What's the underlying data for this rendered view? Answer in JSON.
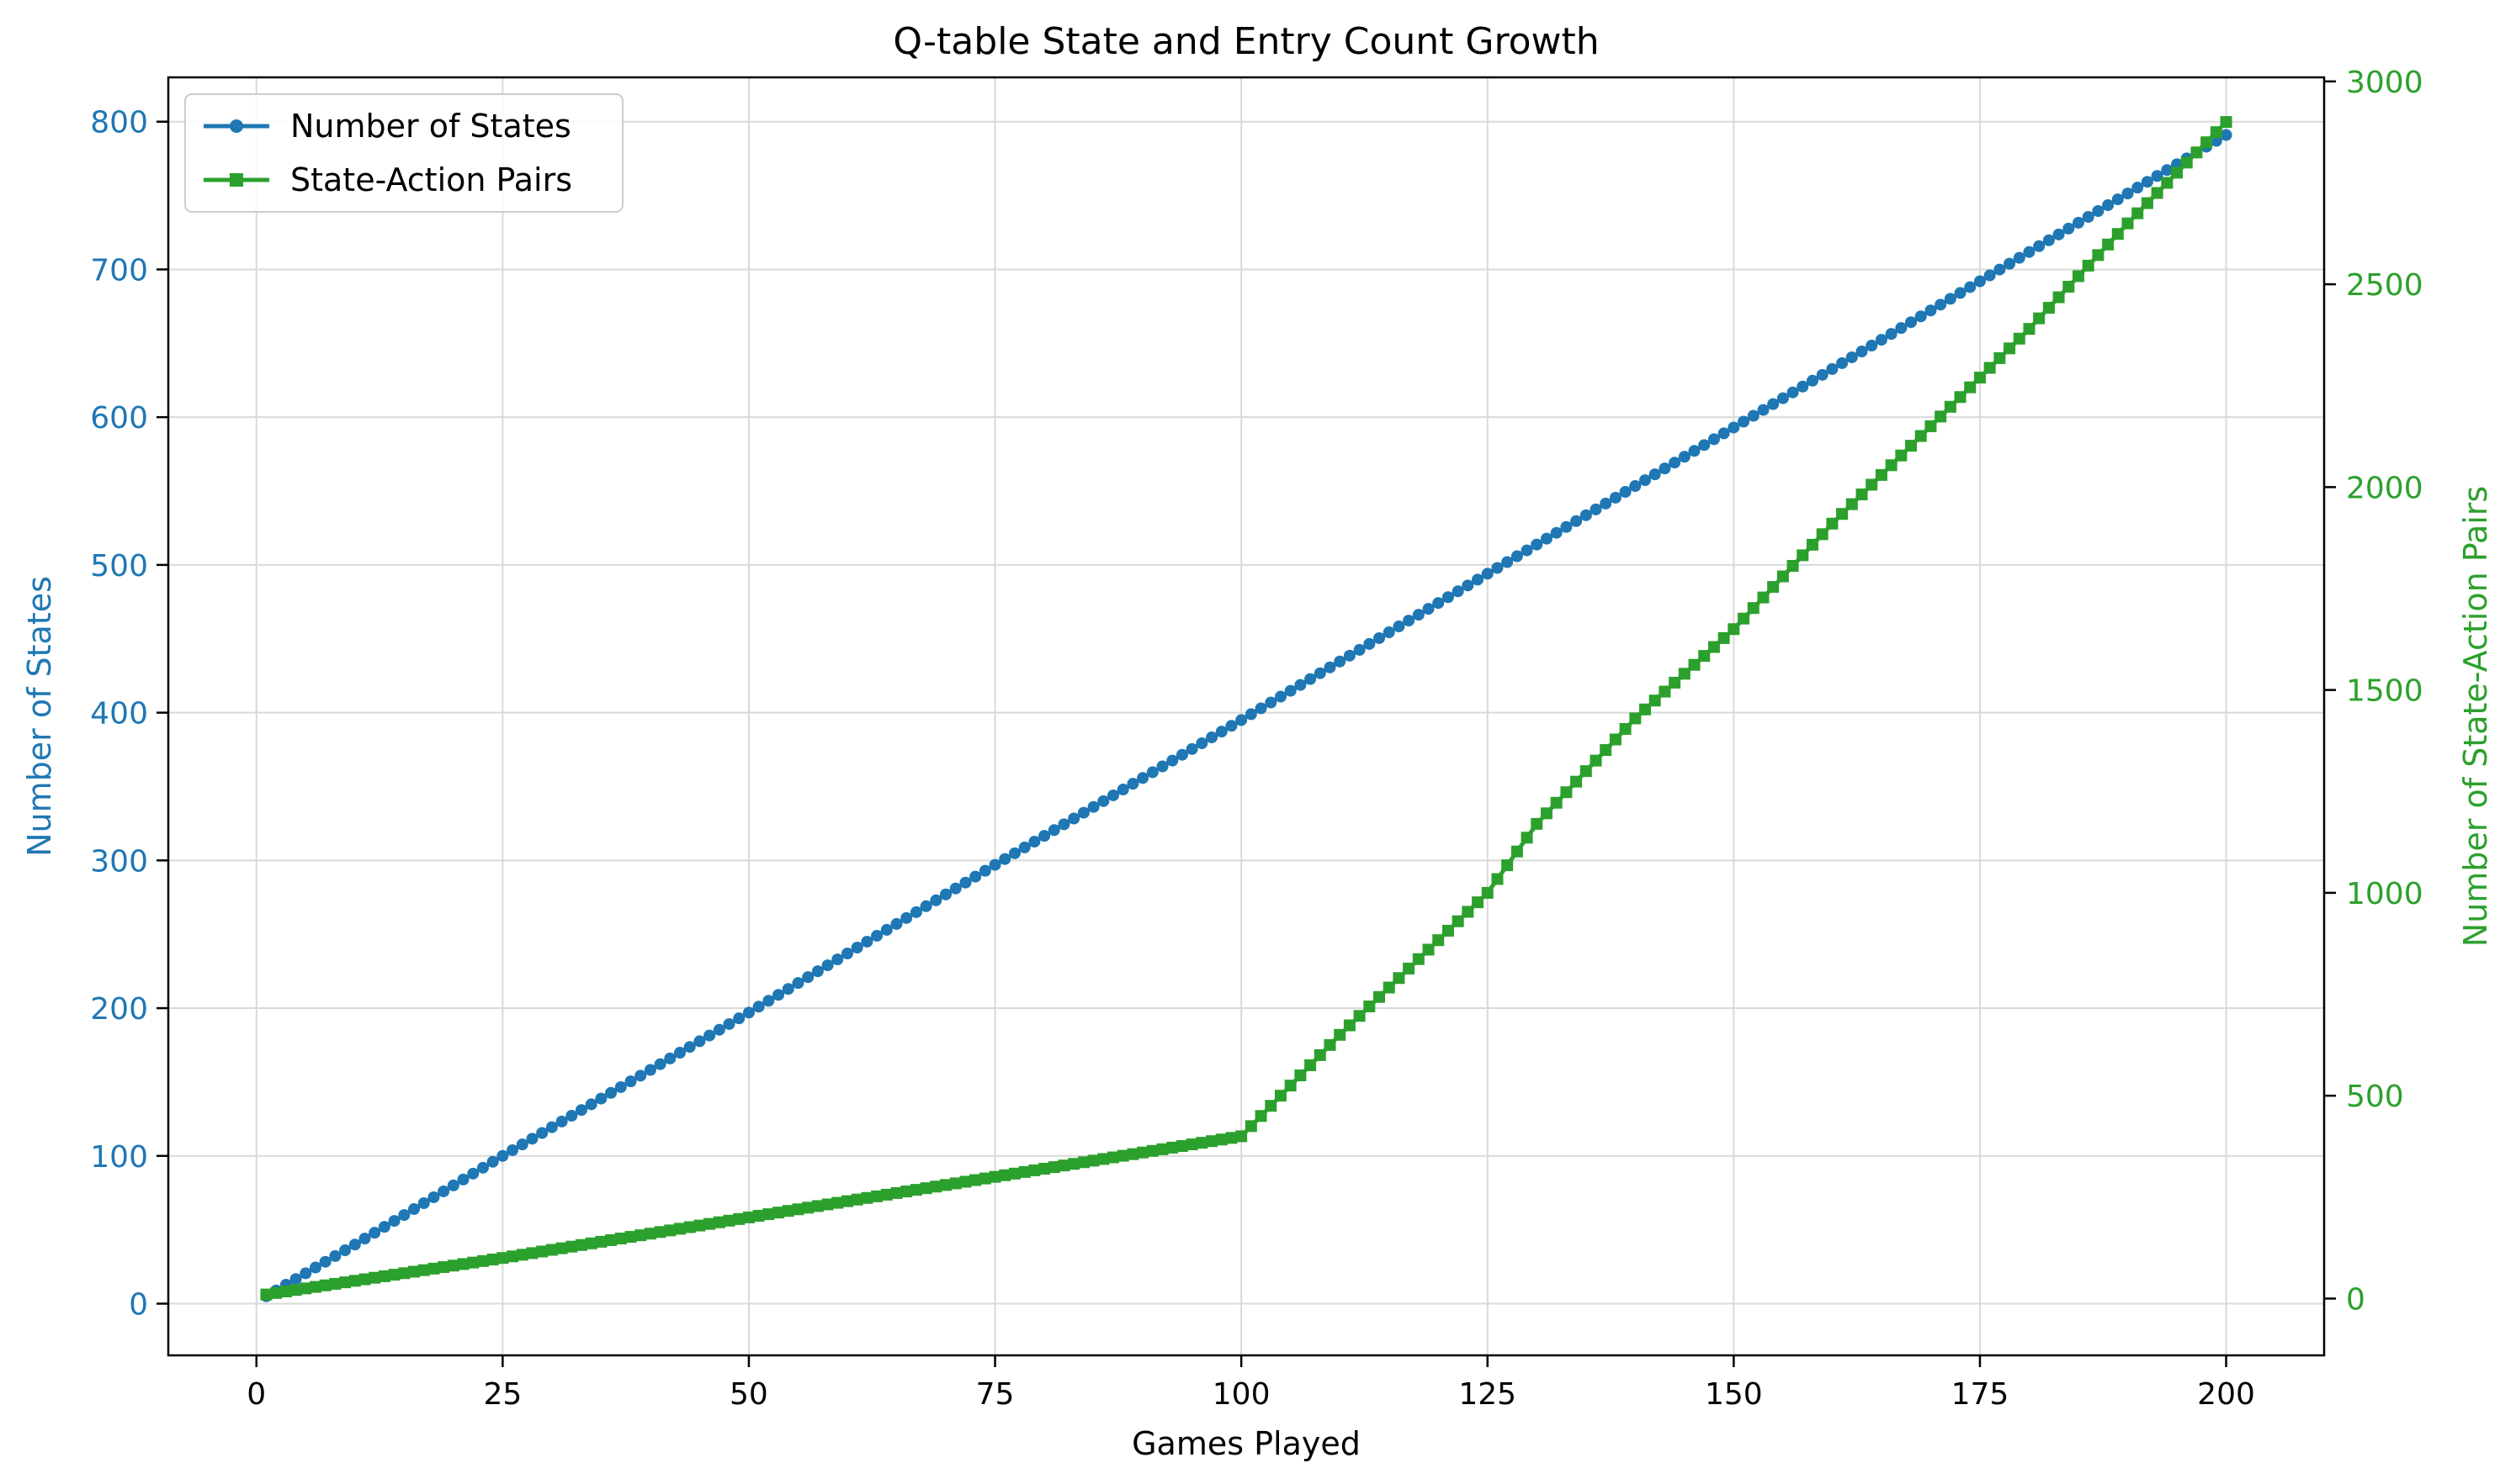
{
  "chart_data": {
    "type": "line",
    "title": "Q-table State and Entry Count Growth",
    "xlabel": "Games Played",
    "ylabel_left": "Number of States",
    "ylabel_right": "Number of State-Action Pairs",
    "xlim": [
      -8.95,
      209.95
    ],
    "ylim_left": [
      -35,
      830
    ],
    "ylim_right": [
      -140,
      3010
    ],
    "xticks": [
      0,
      25,
      50,
      75,
      100,
      125,
      150,
      175,
      200
    ],
    "yticks_left": [
      0,
      100,
      200,
      300,
      400,
      500,
      600,
      700,
      800
    ],
    "yticks_right": [
      0,
      500,
      1000,
      1500,
      2000,
      2500,
      3000
    ],
    "grid": true,
    "legend_position": "upper-left",
    "colors": {
      "states": "#1f77b4",
      "pairs": "#2ca02c"
    },
    "series": [
      {
        "name": "Number of States",
        "axis": "left",
        "marker": "circle",
        "x": [
          1,
          10,
          25,
          50,
          75,
          100,
          125,
          150,
          175,
          200
        ],
        "values": [
          5,
          40,
          100,
          197,
          297,
          395,
          494,
          593,
          692,
          791
        ]
      },
      {
        "name": "State-Action Pairs",
        "axis": "right",
        "marker": "square",
        "x": [
          1,
          25,
          50,
          75,
          100,
          110,
          125,
          130,
          140,
          150,
          160,
          170,
          180,
          190,
          200
        ],
        "values": [
          10,
          100,
          200,
          300,
          400,
          650,
          1000,
          1170,
          1430,
          1650,
          1910,
          2150,
          2390,
          2650,
          2900
        ]
      }
    ]
  }
}
